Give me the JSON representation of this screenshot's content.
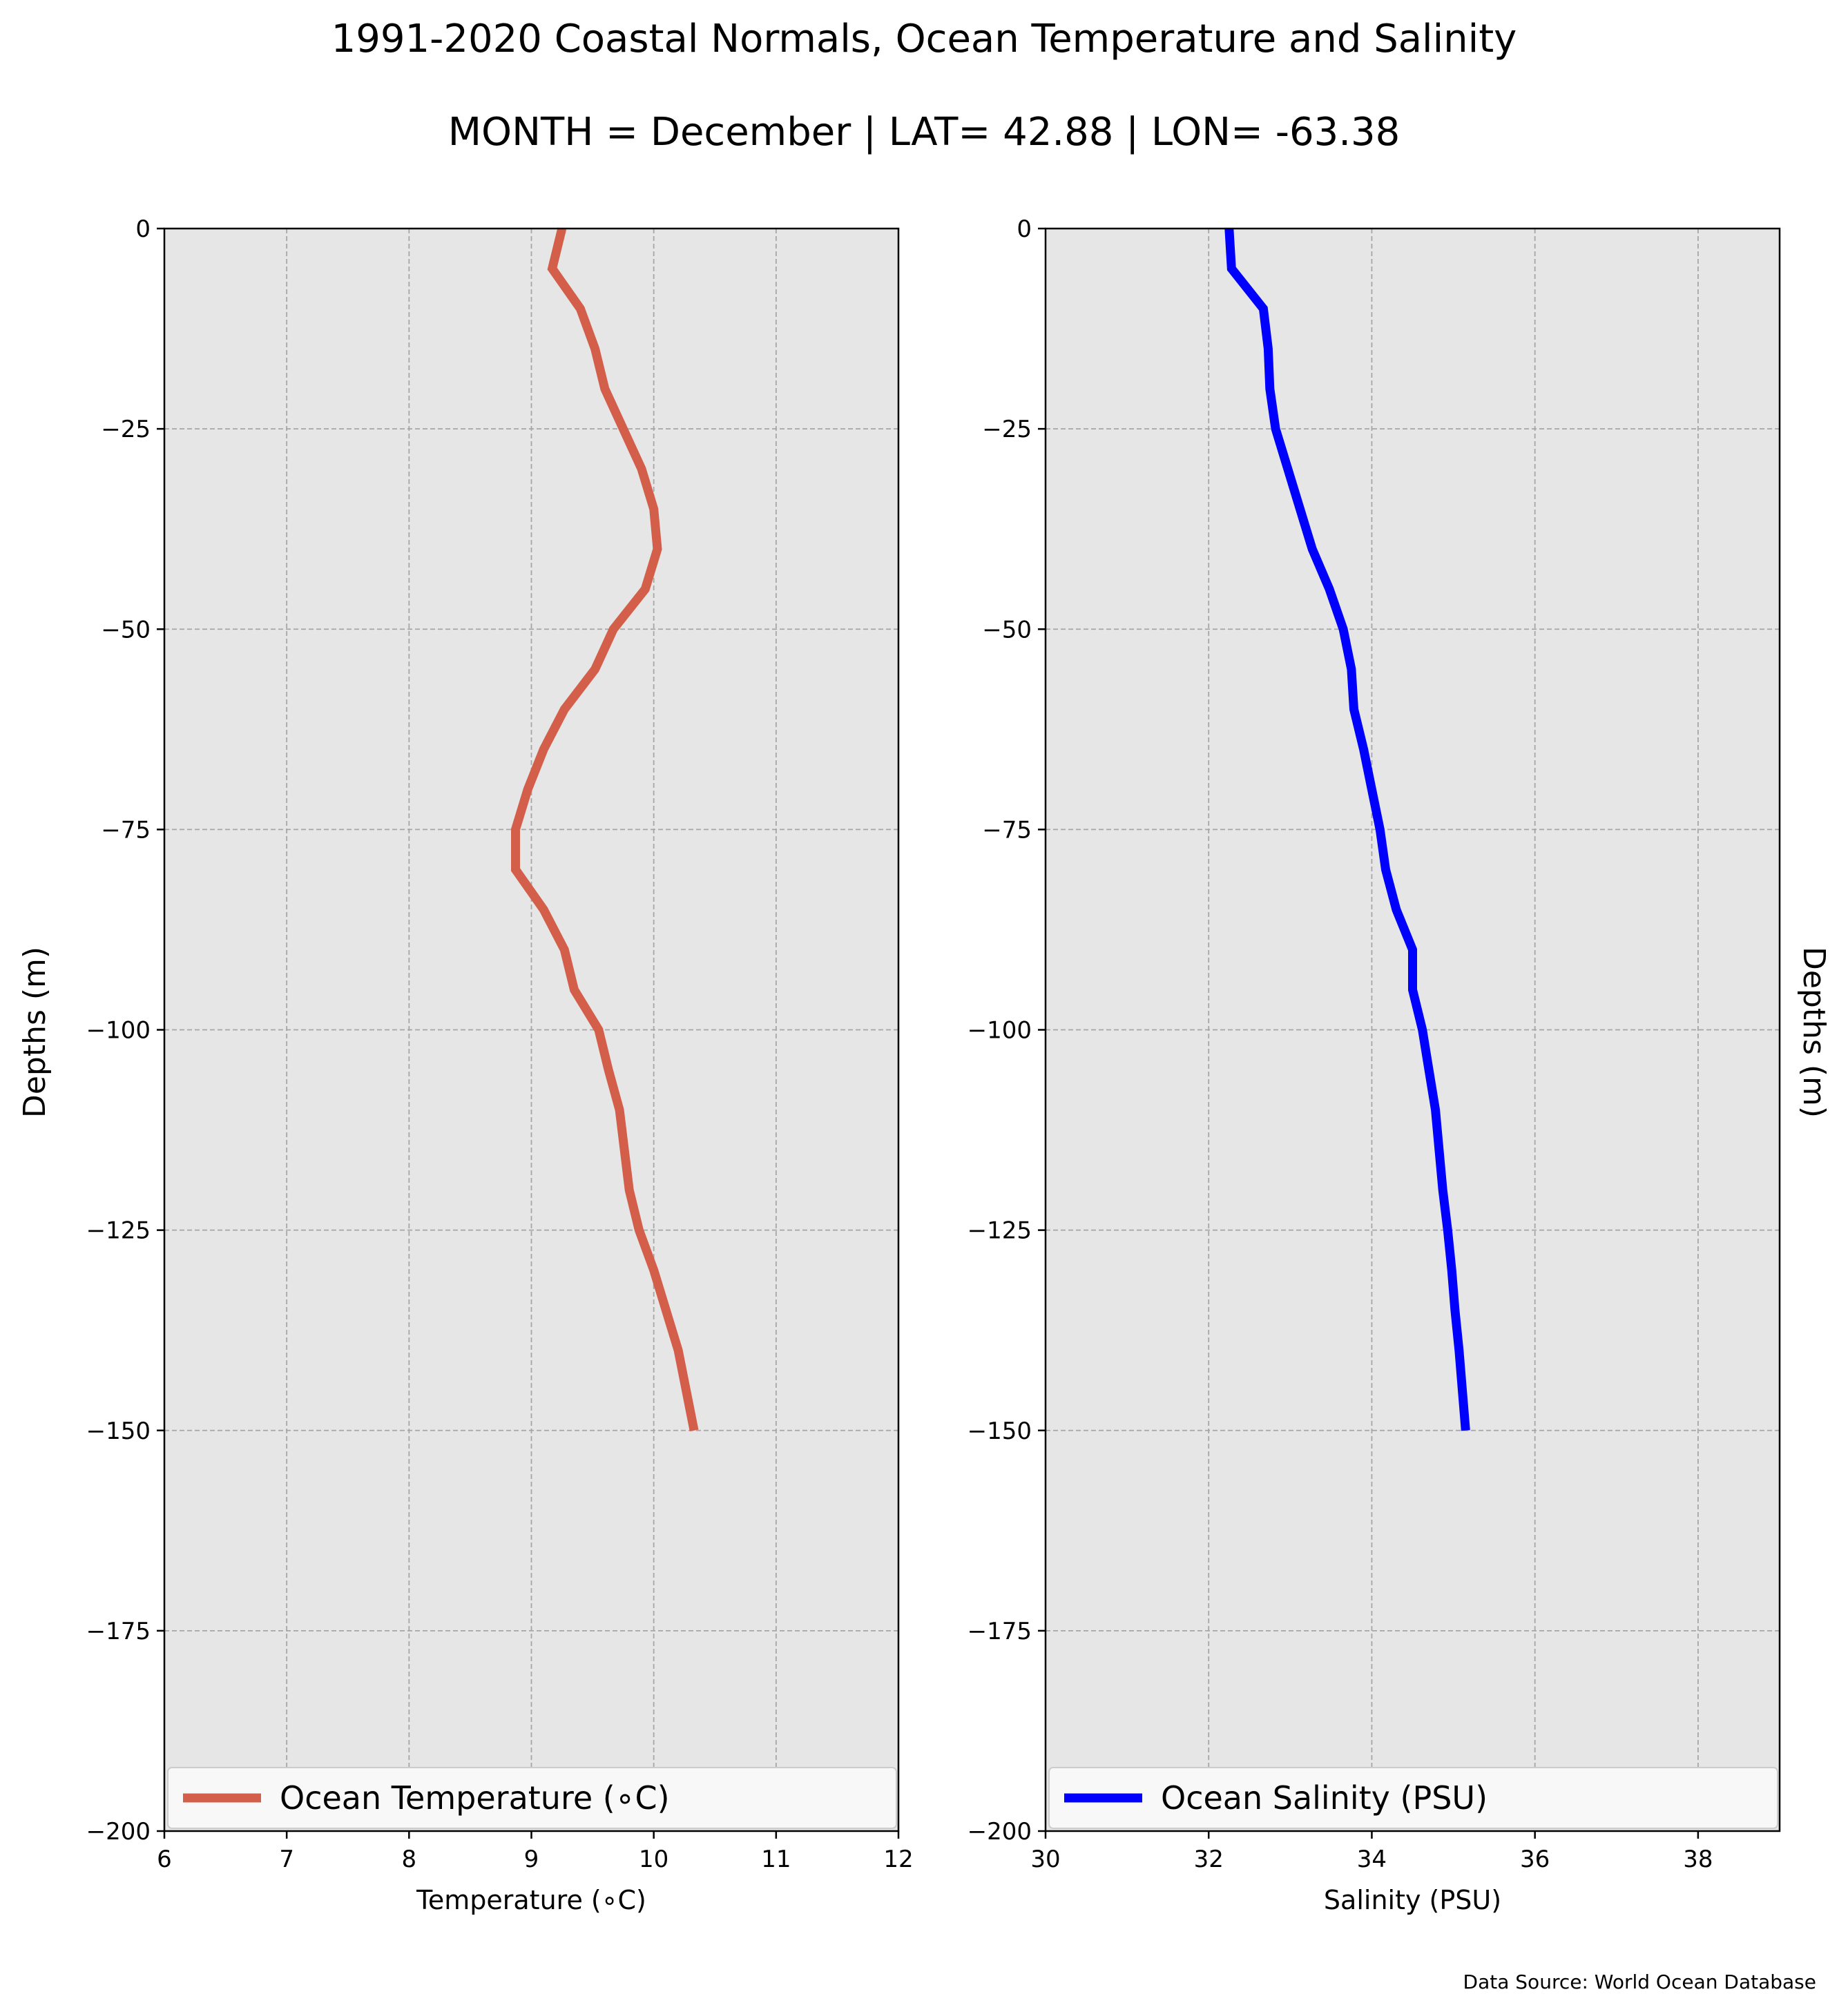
{
  "title": "1991-2020 Coastal Normals, Ocean Temperature and Salinity",
  "subtitle": "MONTH = December | LAT= 42.88 | LON= -63.38",
  "source_note": "Data Source: World Ocean Database",
  "chart_data": [
    {
      "type": "line",
      "xlabel": "Temperature ($^\\circ$C)",
      "xlabel_text": "Temperature (∘C)",
      "ylabel": "Depths (m)",
      "xlim": [
        6,
        12
      ],
      "ylim": [
        -200,
        0
      ],
      "xticks": [
        6,
        7,
        8,
        9,
        10,
        11,
        12
      ],
      "yticks": [
        0,
        -25,
        -50,
        -75,
        -100,
        -125,
        -150,
        -175,
        -200
      ],
      "ytick_labels": [
        "0",
        "−25",
        "−50",
        "−75",
        "−100",
        "−125",
        "−150",
        "−175",
        "−200"
      ],
      "grid": true,
      "background": "#e6e6e6",
      "legend_position": "lower-center",
      "series": [
        {
          "name": "Ocean Temperature (∘C)",
          "color": "#d35f4a",
          "x": [
            9.25,
            9.17,
            9.4,
            9.52,
            9.6,
            9.75,
            9.9,
            10.0,
            10.03,
            9.93,
            9.67,
            9.52,
            9.27,
            9.1,
            8.97,
            8.87,
            8.87,
            9.1,
            9.27,
            9.35,
            9.55,
            9.63,
            9.72,
            9.8,
            9.88,
            10.0,
            10.1,
            10.2,
            10.33
          ],
          "y": [
            0,
            -5,
            -10,
            -15,
            -20,
            -25,
            -30,
            -35,
            -40,
            -45,
            -50,
            -55,
            -60,
            -65,
            -70,
            -75,
            -80,
            -85,
            -90,
            -95,
            -100,
            -105,
            -110,
            -120,
            -125,
            -130,
            -135,
            -140,
            -150
          ]
        }
      ]
    },
    {
      "type": "line",
      "xlabel": "Salinity (PSU)",
      "ylabel": "Depths (m)",
      "xlim": [
        30,
        39
      ],
      "ylim": [
        -200,
        0
      ],
      "xticks": [
        30,
        32,
        34,
        36,
        38
      ],
      "yticks": [
        0,
        -25,
        -50,
        -75,
        -100,
        -125,
        -150,
        -175,
        -200
      ],
      "ytick_labels": [
        "0",
        "−25",
        "−50",
        "−75",
        "−100",
        "−125",
        "−150",
        "−175",
        "−200"
      ],
      "grid": true,
      "background": "#e6e6e6",
      "legend_position": "lower-center",
      "series": [
        {
          "name": "Ocean Salinity (PSU)",
          "color": "#0000ff",
          "x": [
            32.25,
            32.28,
            32.67,
            32.73,
            32.75,
            32.82,
            32.97,
            33.12,
            33.27,
            33.48,
            33.65,
            33.75,
            33.78,
            33.9,
            34.0,
            34.1,
            34.17,
            34.3,
            34.5,
            34.5,
            34.62,
            34.7,
            34.78,
            34.87,
            34.93,
            34.98,
            35.02,
            35.07,
            35.15
          ],
          "y": [
            0,
            -5,
            -10,
            -15,
            -20,
            -25,
            -30,
            -35,
            -40,
            -45,
            -50,
            -55,
            -60,
            -65,
            -70,
            -75,
            -80,
            -85,
            -90,
            -95,
            -100,
            -105,
            -110,
            -120,
            -125,
            -130,
            -135,
            -140,
            -150
          ]
        }
      ]
    }
  ]
}
